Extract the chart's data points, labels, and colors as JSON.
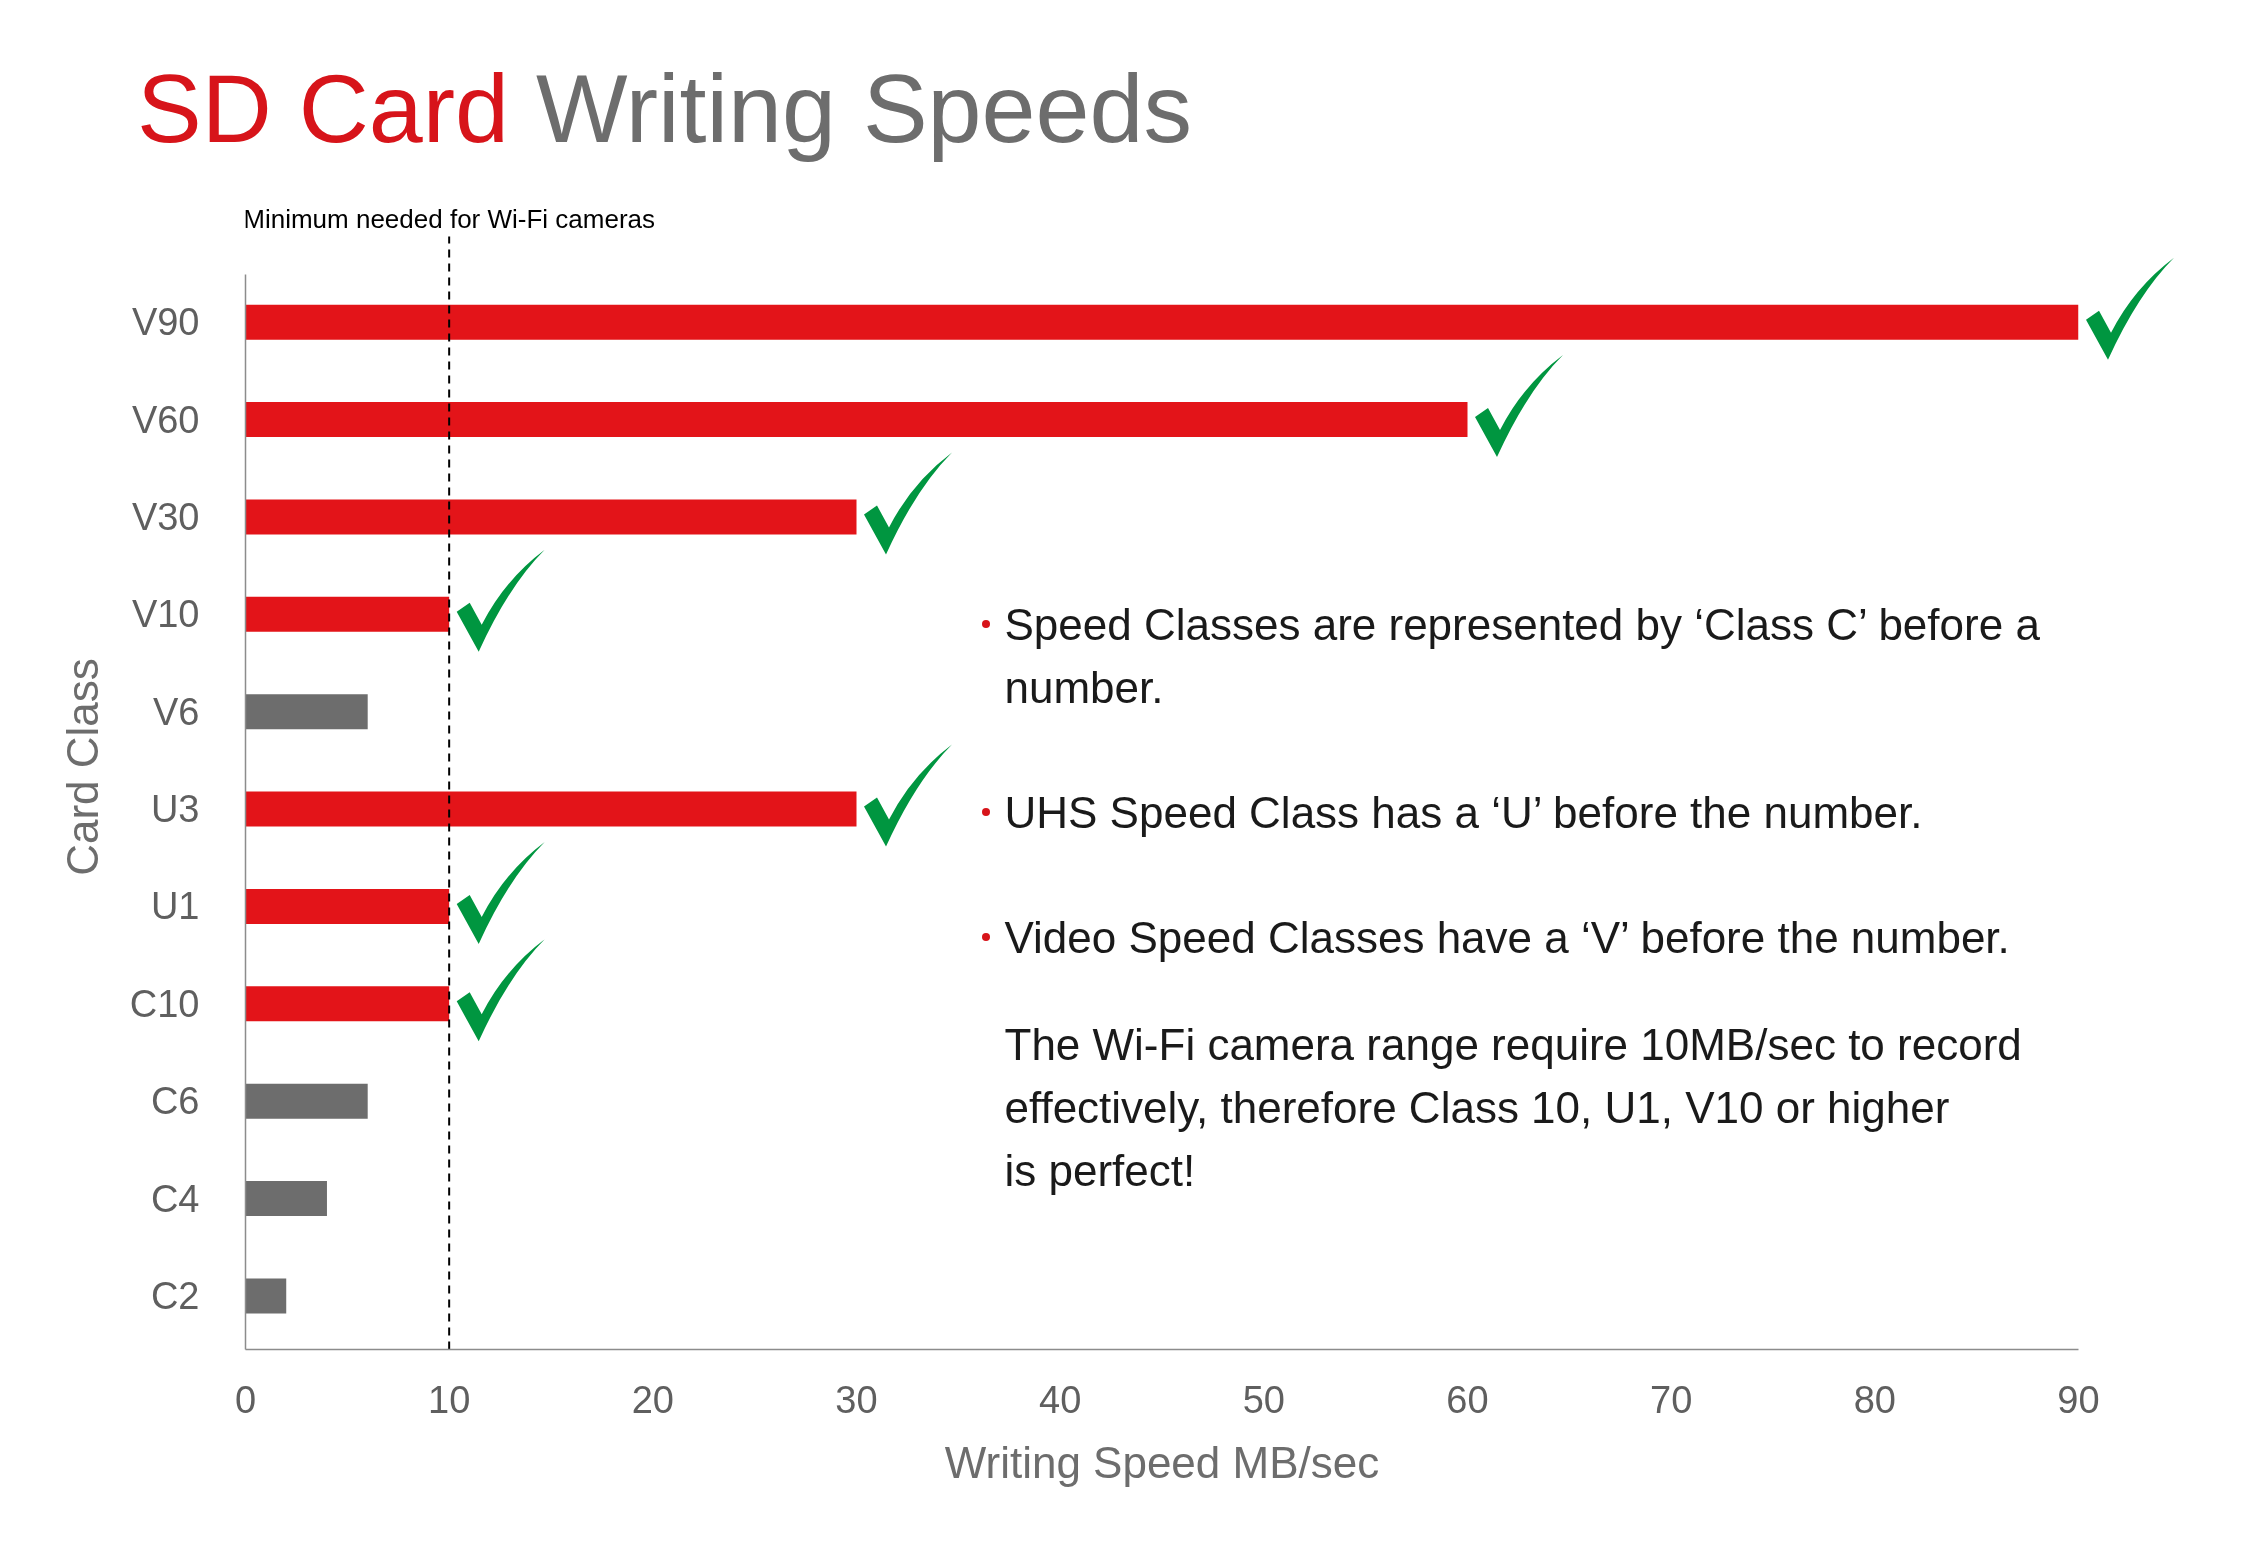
{
  "chart_data": {
    "type": "bar",
    "orientation": "horizontal",
    "title": "SD Card Writing Speeds",
    "xlabel": "Writing Speed MB/sec",
    "ylabel": "Card Class",
    "categories": [
      "V90",
      "V60",
      "V30",
      "V10",
      "V6",
      "U3",
      "U1",
      "C10",
      "C6",
      "C4",
      "C2"
    ],
    "values": [
      90,
      60,
      30,
      10,
      6,
      30,
      10,
      10,
      6,
      4,
      2
    ],
    "colors": [
      "#e31419",
      "#e31419",
      "#e31419",
      "#e31419",
      "#6d6d6d",
      "#e31419",
      "#e31419",
      "#e31419",
      "#6d6d6d",
      "#6d6d6d",
      "#6d6d6d"
    ],
    "xlim": [
      0,
      90
    ],
    "xticks": [
      0,
      10,
      20,
      30,
      40,
      50,
      60,
      70,
      80,
      90
    ],
    "grid": false,
    "ref_lines": [
      {
        "axis": "x",
        "value": 10,
        "label": "Minimum needed for Wi-Fi cameras",
        "color": "#000000",
        "line_style": "dashed"
      }
    ],
    "annotations": [
      "Speed Classes are represented by ‘Class C’ before a number.",
      "UHS Speed Class has a ‘U’ before the number.",
      "Video Speed Classes have a ‘V’ before the number.",
      "The Wi-Fi camera range require 10MB/sec to record effectively, therefore Class 10, U1, V10 or higher is perfect!"
    ]
  }
}
